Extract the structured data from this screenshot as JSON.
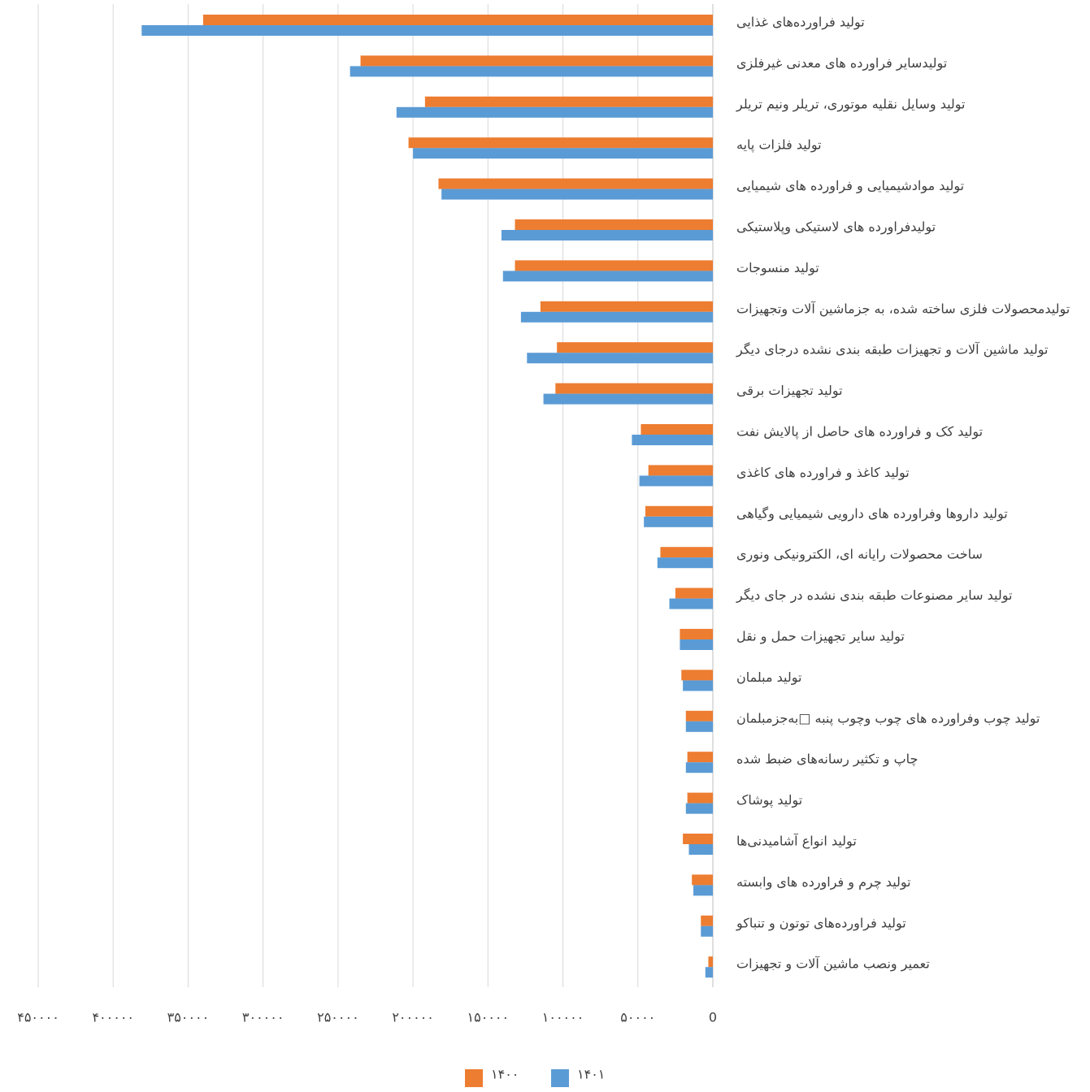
{
  "chart_data": {
    "type": "hbar-reversed",
    "categories": [
      "تولید فراورده‌های غذایی",
      "تولیدسایر فراورده های معدنی غیرفلزی",
      "تولید وسایل نقلیه موتوری، تریلر ونیم تریلر",
      "تولید فلزات پایه",
      "تولید موادشیمیایی و فراورده های شیمیایی",
      "تولیدفراورده های لاستیکی وپلاستیکی",
      "تولید منسوجات",
      "تولیدمحصولات فلزی ساخته شده، به جزماشین آلات وتجهیزات",
      "تولید ماشین آلات و تجهیزات طبقه بندی نشده درجای دیگر",
      "تولید تجهیزات برقی",
      "تولید کک و فراورده های حاصل از پالایش نفت",
      "تولید کاغذ و فراورده های کاغذی",
      "تولید داروها وفراورده های دارویی شیمیایی وگیاهی",
      "ساخت محصولات رایانه ای، الکترونیکی ونوری",
      "تولید سایر مصنوعات طبقه بندی نشده در جای دیگر",
      "تولید سایر تجهیزات حمل و نقل",
      "تولید مبلمان",
      "تولید چوب وفراورده های چوب وچوب پنبه □به‌جزمبلمان",
      "چاپ و تکثیر رسانه‌های ضبط شده",
      "تولید پوشاک",
      "تولید انواع آشامیدنی‌ها",
      "تولید چرم و فراورده های وابسته",
      "تولید فراورده‌های توتون و تنباکو",
      "تعمیر ونصب ماشین آلات و تجهیزات"
    ],
    "series": [
      {
        "name": "۱۴۰۰",
        "color": "#ed7d31",
        "values": [
          340000,
          235000,
          192000,
          203000,
          183000,
          132000,
          132000,
          115000,
          104000,
          105000,
          48000,
          43000,
          45000,
          35000,
          25000,
          22000,
          21000,
          18000,
          17000,
          17000,
          20000,
          14000,
          8000,
          3000
        ]
      },
      {
        "name": "۱۴۰۱",
        "color": "#5b9bd5",
        "values": [
          381000,
          242000,
          211000,
          200000,
          181000,
          141000,
          140000,
          128000,
          124000,
          113000,
          54000,
          49000,
          46000,
          37000,
          29000,
          22000,
          20000,
          18000,
          18000,
          18000,
          16000,
          13000,
          8000,
          5000
        ]
      }
    ],
    "xlim": [
      0,
      450000
    ],
    "xticks": [
      0,
      {
        "value": 50000,
        "label": "۵۰۰۰۰"
      },
      {
        "value": 100000,
        "label": "۱۰۰۰۰۰"
      },
      {
        "value": 150000,
        "label": "۱۵۰۰۰۰"
      },
      {
        "value": 200000,
        "label": "۲۰۰۰۰۰"
      },
      {
        "value": 250000,
        "label": "۲۵۰۰۰۰"
      },
      {
        "value": 300000,
        "label": "۳۰۰۰۰۰"
      },
      {
        "value": 350000,
        "label": "۳۵۰۰۰۰"
      },
      {
        "value": 400000,
        "label": "۴۰۰۰۰۰"
      },
      {
        "value": 450000,
        "label": "۴۵۰۰۰۰"
      }
    ],
    "grid": true,
    "legend": "bottom"
  }
}
